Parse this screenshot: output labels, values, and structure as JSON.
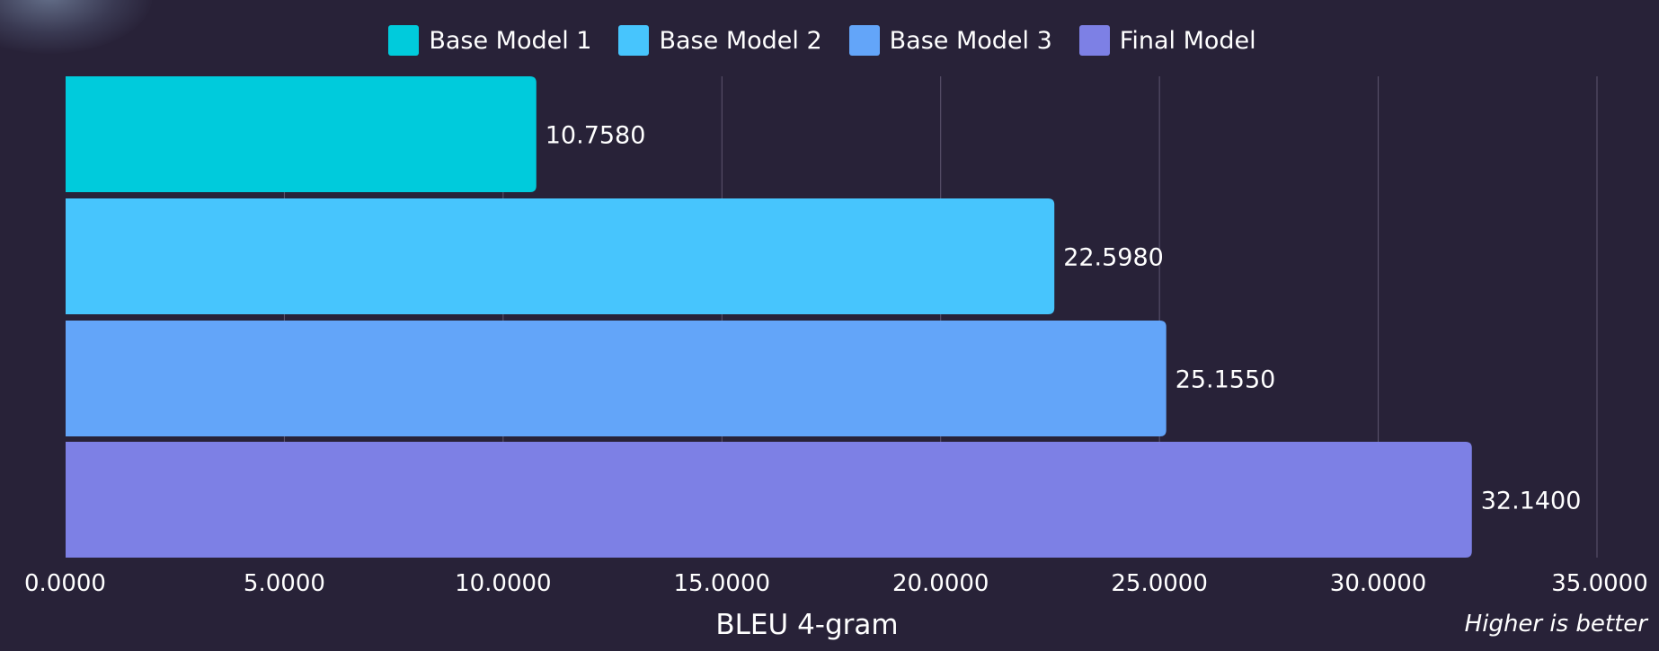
{
  "chart_data": {
    "type": "bar",
    "orientation": "horizontal",
    "categories": [
      "Base Model 1",
      "Base Model 2",
      "Base Model 3",
      "Final Model"
    ],
    "values": [
      10.758,
      22.598,
      25.155,
      32.14
    ],
    "value_labels": [
      "10.7580",
      "22.5980",
      "25.1550",
      "32.1400"
    ],
    "colors": [
      "#00CBDC",
      "#47C5FD",
      "#63A5F9",
      "#7D80E5"
    ],
    "xlabel": "BLEU 4-gram",
    "ylabel": "",
    "xlim": [
      0,
      35
    ],
    "x_ticks": [
      0,
      5,
      10,
      15,
      20,
      25,
      30,
      35
    ],
    "x_tick_labels": [
      "0.0000",
      "5.0000",
      "10.0000",
      "15.0000",
      "20.0000",
      "25.0000",
      "30.0000",
      "35.0000"
    ],
    "grid": "vertical",
    "legend": {
      "position": "top-center",
      "entries": [
        "Base Model 1",
        "Base Model 2",
        "Base Model 3",
        "Final Model"
      ]
    },
    "annotation": "Higher is better"
  }
}
